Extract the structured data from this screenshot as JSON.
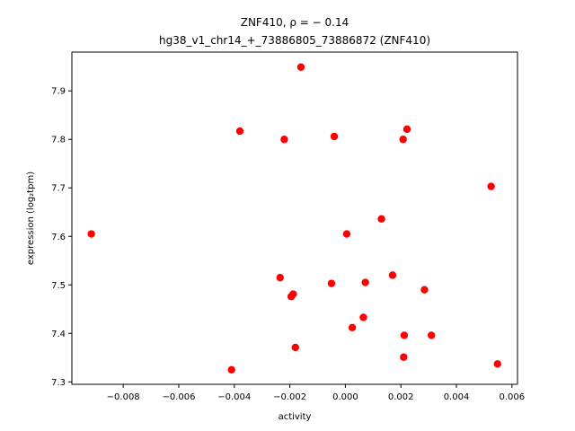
{
  "chart_data": {
    "type": "scatter",
    "title_line1": "ZNF410, ρ = − 0.14",
    "title_line2": "hg38_v1_chr14_+_73886805_73886872 (ZNF410)",
    "xlabel": "activity",
    "ylabel": "expression (log₂tpm)",
    "xlim": [
      -0.00985,
      0.0062
    ],
    "ylim": [
      7.295,
      7.98
    ],
    "x_ticks": [
      -0.008,
      -0.006,
      -0.004,
      -0.002,
      0.0,
      0.002,
      0.004,
      0.006
    ],
    "x_tick_labels": [
      "−0.008",
      "−0.006",
      "−0.004",
      "−0.002",
      "0.000",
      "0.002",
      "0.004",
      "0.006"
    ],
    "y_ticks": [
      7.3,
      7.4,
      7.5,
      7.6,
      7.7,
      7.8,
      7.9
    ],
    "y_tick_labels": [
      "7.3",
      "7.4",
      "7.5",
      "7.6",
      "7.7",
      "7.8",
      "7.9"
    ],
    "grid": false,
    "marker_color": "#ff0000",
    "points": [
      {
        "x": -0.00915,
        "y": 7.605
      },
      {
        "x": -0.0041,
        "y": 7.325
      },
      {
        "x": -0.0038,
        "y": 7.817
      },
      {
        "x": -0.00235,
        "y": 7.515
      },
      {
        "x": -0.0022,
        "y": 7.8
      },
      {
        "x": -0.00195,
        "y": 7.476
      },
      {
        "x": -0.00188,
        "y": 7.481
      },
      {
        "x": -0.0018,
        "y": 7.371
      },
      {
        "x": -0.0016,
        "y": 7.949
      },
      {
        "x": -0.0005,
        "y": 7.503
      },
      {
        "x": -0.0004,
        "y": 7.806
      },
      {
        "x": 5e-05,
        "y": 7.605
      },
      {
        "x": 0.00025,
        "y": 7.412
      },
      {
        "x": 0.00065,
        "y": 7.433
      },
      {
        "x": 0.00072,
        "y": 7.505
      },
      {
        "x": 0.0013,
        "y": 7.636
      },
      {
        "x": 0.0017,
        "y": 7.52
      },
      {
        "x": 0.00208,
        "y": 7.8
      },
      {
        "x": 0.0021,
        "y": 7.351
      },
      {
        "x": 0.00212,
        "y": 7.396
      },
      {
        "x": 0.00222,
        "y": 7.821
      },
      {
        "x": 0.00285,
        "y": 7.49
      },
      {
        "x": 0.0031,
        "y": 7.396
      },
      {
        "x": 0.00525,
        "y": 7.703
      },
      {
        "x": 0.00548,
        "y": 7.337
      }
    ]
  }
}
